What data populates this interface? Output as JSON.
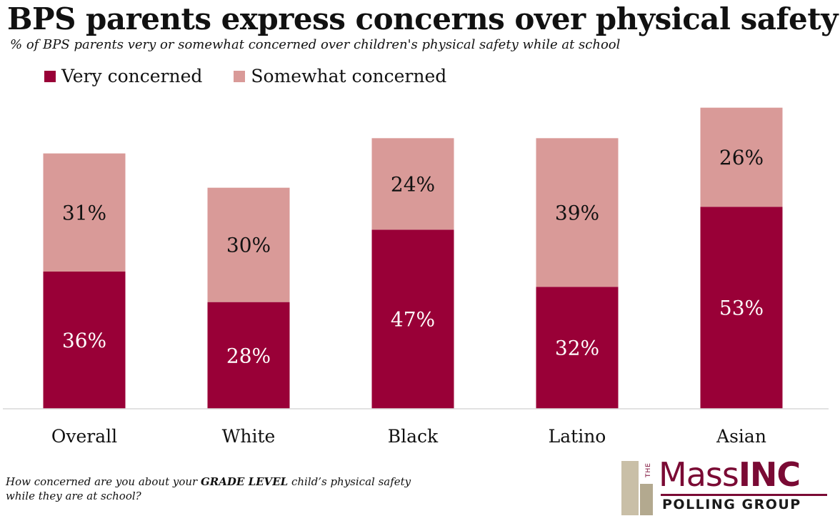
{
  "header": {
    "title": "BPS parents express concerns over physical safety",
    "subtitle": "% of BPS parents very or somewhat concerned over children's physical safety while at school"
  },
  "legend": {
    "very": "Very concerned",
    "somewhat": "Somewhat concerned"
  },
  "colors": {
    "very": "#990037",
    "somewhat": "#d99a98",
    "axis": "#d9d9d9"
  },
  "footnote": {
    "prefix": "How concerned are you about your ",
    "emphasis": "GRADE LEVEL",
    "suffix": " child’s physical safety while they are at school?"
  },
  "logo": {
    "the": "THE",
    "mass": "Mass",
    "inc": "INC",
    "sub": "POLLING GROUP"
  },
  "chart_data": {
    "type": "bar",
    "stacked": true,
    "categories": [
      "Overall",
      "White",
      "Black",
      "Latino",
      "Asian"
    ],
    "series": [
      {
        "name": "Very concerned",
        "values": [
          36,
          28,
          47,
          32,
          53
        ],
        "labels": [
          "36%",
          "28%",
          "47%",
          "32%",
          "53%"
        ]
      },
      {
        "name": "Somewhat concerned",
        "values": [
          31,
          30,
          24,
          39,
          26
        ],
        "labels": [
          "31%",
          "30%",
          "24%",
          "39%",
          "26%"
        ]
      }
    ],
    "ylim": [
      0,
      80
    ],
    "grid": false,
    "legend_position": "top-left"
  }
}
